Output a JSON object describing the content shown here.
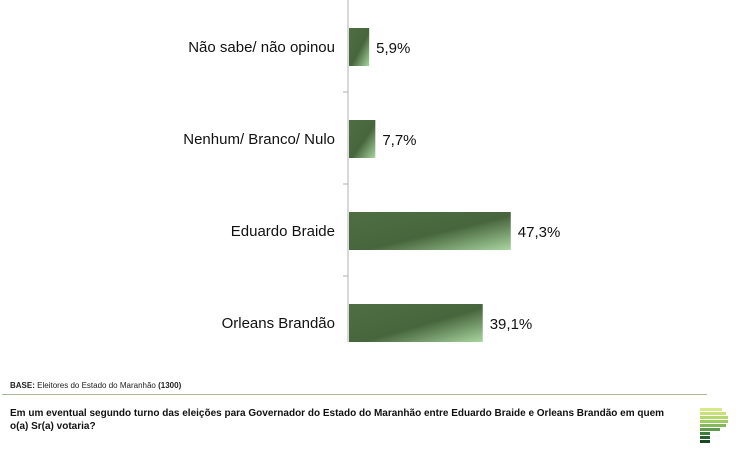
{
  "chart_data": {
    "type": "bar",
    "orientation": "horizontal",
    "categories": [
      "Não sabe/ não opinou",
      "Nenhum/ Branco/ Nulo",
      "Eduardo Braide",
      "Orleans Brandão"
    ],
    "values": [
      5.9,
      7.7,
      47.3,
      39.1
    ],
    "data_labels": [
      "5,9%",
      "7,7%",
      "47,3%",
      "39,1%"
    ],
    "xlim": [
      0,
      100
    ],
    "grid": false,
    "bar_color": "#4a6b3f",
    "bar_highlight": "#a9d6a0"
  },
  "footer": {
    "base_label": "BASE:",
    "base_text": "Eleitores do Estado do Maranhão",
    "base_count": "(1300)",
    "question": "Em um eventual segundo turno das eleições para Governador do Estado do Maranhão entre Eduardo Braide e Orleans Brandão em quem o(a) Sr(a) votaria?"
  }
}
